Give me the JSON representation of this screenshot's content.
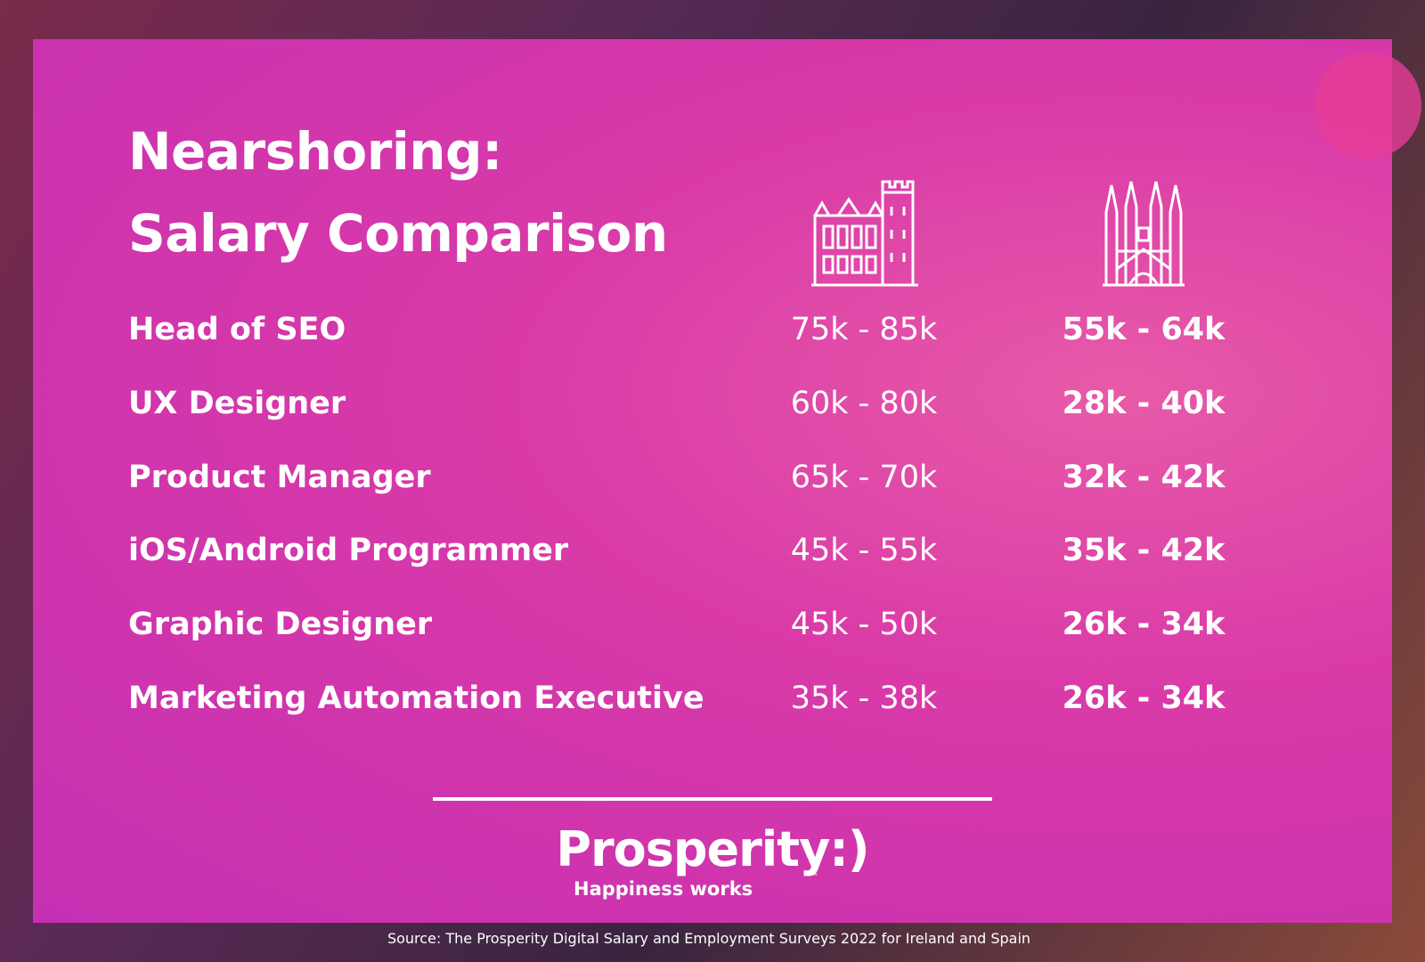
{
  "header": {
    "title": [
      "Nearshoring:",
      "Salary Comparison"
    ]
  },
  "table": {
    "rows": [
      [
        "Head of SEO",
        "75k - 85k",
        "55k - 64k"
      ],
      [
        "UX Designer",
        "60k - 80k",
        "28k - 40k"
      ],
      [
        "Product Manager",
        "65k - 70k",
        "32k - 42k"
      ],
      [
        "iOS/Android Programmer",
        "45k - 55k",
        "35k - 42k"
      ],
      [
        "Graphic Designer",
        "45k - 50k",
        "26k - 34k"
      ],
      [
        "Marketing Automation Executive",
        "35k - 38k",
        "26k - 34k"
      ]
    ]
  },
  "logo": {
    "name": "Prosperity:)",
    "trademark": "™",
    "tagline": "Happiness works"
  },
  "source": "Source: The Prosperity Digital Salary and Employment Surveys 2022 for Ireland and Spain"
}
